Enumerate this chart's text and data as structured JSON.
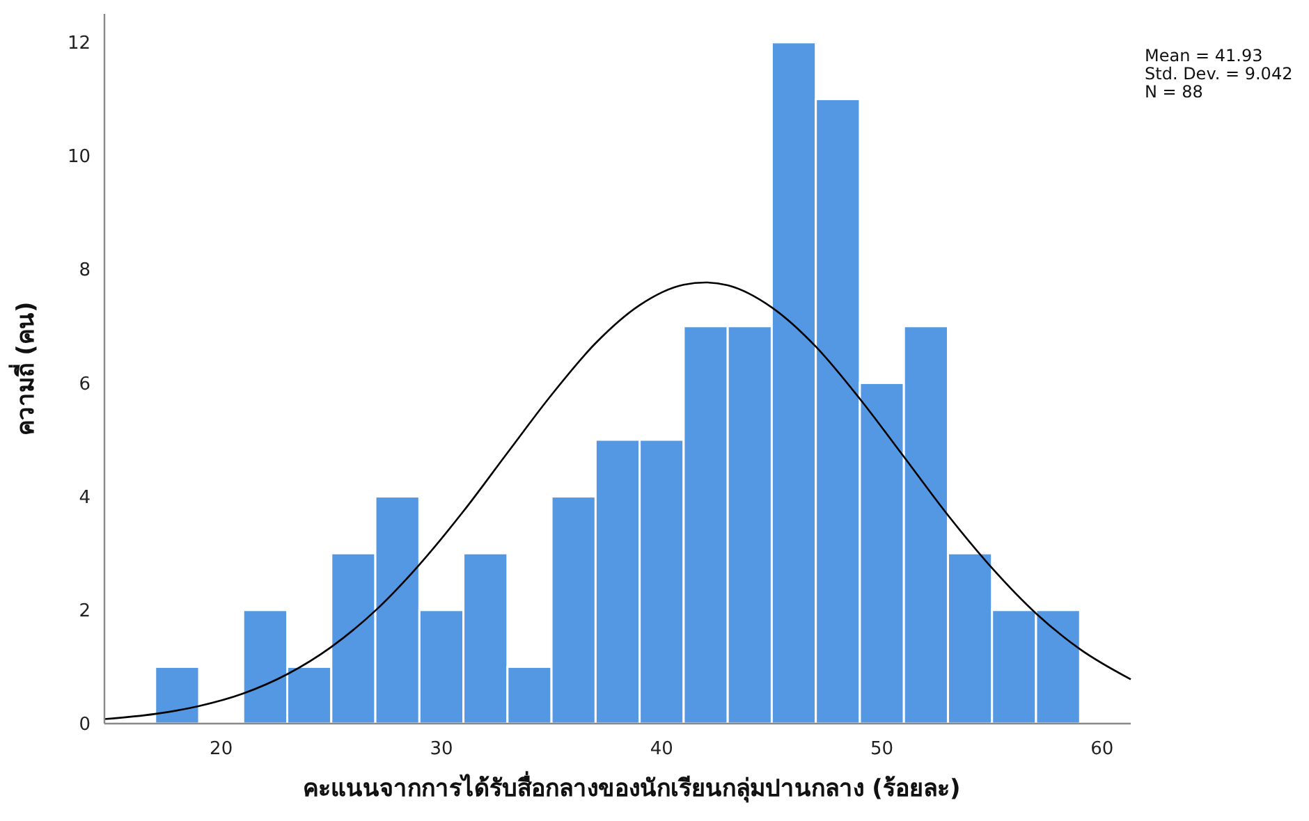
{
  "chart_data": {
    "type": "histogram",
    "xlabel": "คะแนนจากการได้รับสื่อกลางของนักเรียนกลุ่มปานกลาง (ร้อยละ)",
    "ylabel": "ความถี่ (คน)",
    "bins": [
      17,
      19,
      21,
      23,
      25,
      27,
      29,
      31,
      33,
      35,
      37,
      39,
      41,
      43,
      45,
      47,
      49,
      51,
      53,
      55,
      57,
      59
    ],
    "values": [
      1,
      0,
      2,
      1,
      3,
      4,
      2,
      3,
      1,
      4,
      5,
      5,
      7,
      7,
      12,
      11,
      6,
      7,
      3,
      2,
      2
    ],
    "color": "#5497e3",
    "series": [
      {
        "type": "line",
        "color": "#000000",
        "x": [
          14.7,
          17,
          19,
          21,
          23,
          25,
          27,
          29,
          31,
          33,
          35,
          37,
          39,
          41,
          42,
          43,
          45,
          47,
          49,
          51,
          53,
          55,
          57,
          59,
          61.3
        ],
        "values": [
          0.08,
          0.17,
          0.31,
          0.53,
          0.87,
          1.35,
          1.99,
          2.8,
          3.74,
          4.77,
          5.79,
          6.7,
          7.37,
          7.73,
          7.77,
          7.72,
          7.33,
          6.64,
          5.72,
          4.7,
          3.67,
          2.74,
          1.94,
          1.31,
          0.78
        ]
      }
    ],
    "xlim": [
      14.7,
      61.3
    ],
    "xticks": [
      20,
      30,
      40,
      50,
      60
    ],
    "ylim": [
      0,
      12.5
    ],
    "yticks": [
      0,
      2,
      4,
      6,
      8,
      10,
      12
    ],
    "grid": false,
    "annotations": [
      "Mean = 41.93",
      "Std. Dev. = 9.042",
      "N = 88"
    ]
  }
}
